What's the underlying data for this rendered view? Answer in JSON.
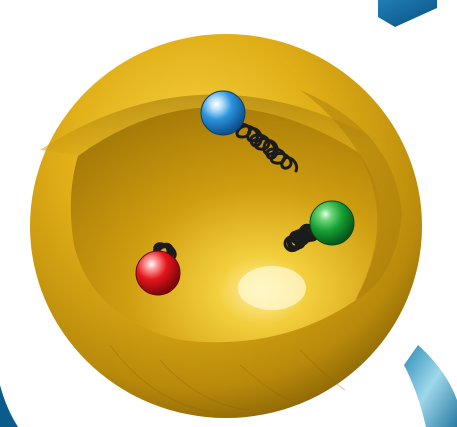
{
  "image": {
    "subject": "quark-gluon-model",
    "colors": {
      "background": "#ffffff",
      "sphere_light": "#f2c21b",
      "sphere_mid": "#d2a012",
      "sphere_dark": "#8c6607",
      "cavity": "#c8970d",
      "gluon_spring": "#1b1b1b",
      "quark_blue": "#1e88d8",
      "quark_green": "#18a035",
      "quark_red": "#e3151b",
      "corner_accent": "#0a5a8a"
    },
    "quarks": [
      {
        "name": "blue-quark",
        "color": "#1e88d8"
      },
      {
        "name": "green-quark",
        "color": "#18a035"
      },
      {
        "name": "red-quark",
        "color": "#e3151b"
      }
    ],
    "gluons": [
      {
        "from": "blue-quark",
        "to": "green-quark"
      },
      {
        "from": "green-quark",
        "to": "red-quark"
      },
      {
        "from": "red-quark",
        "to": "blue-quark"
      }
    ]
  }
}
